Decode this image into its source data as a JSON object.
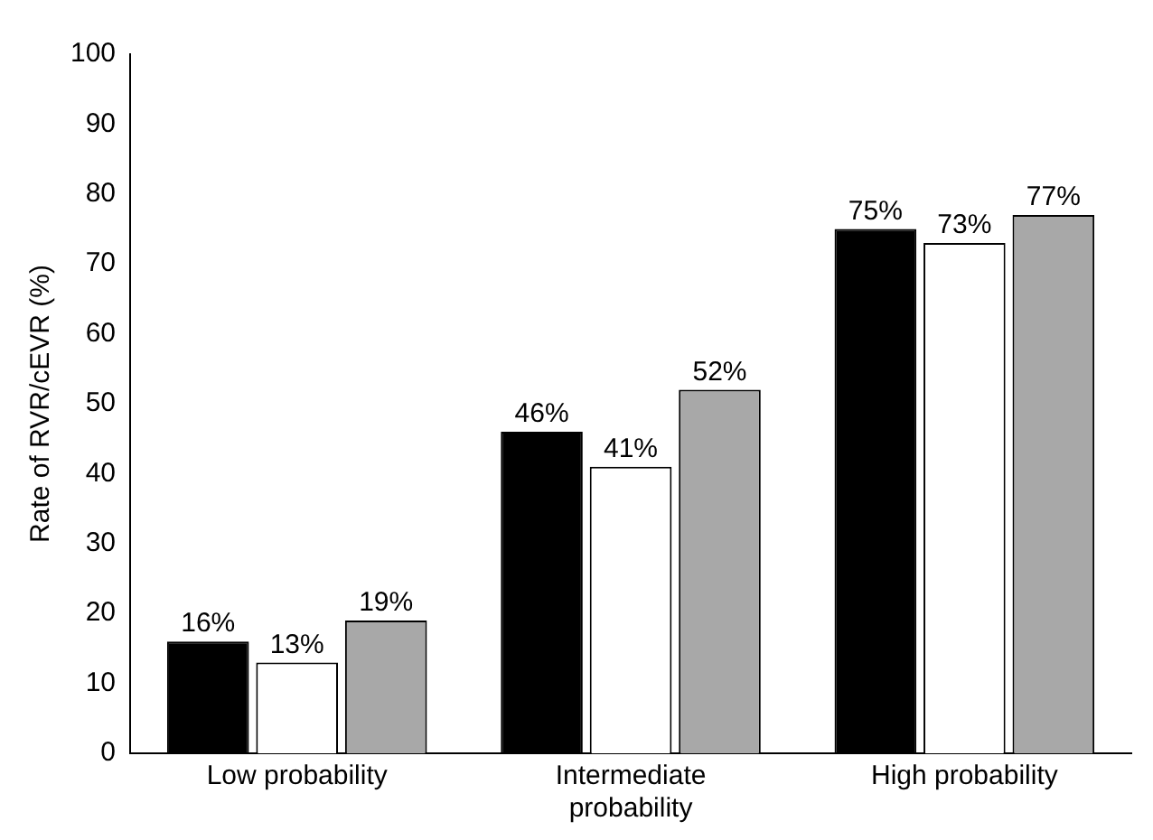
{
  "chart_data": {
    "type": "bar",
    "ylabel": "Rate of RVR/cEVR (%)",
    "categories": [
      "Low probability",
      "Intermediate probability",
      "High probability"
    ],
    "series": [
      {
        "color": "#000000",
        "values": [
          16,
          46,
          75
        ],
        "value_labels": [
          "16%",
          "46%",
          "75%"
        ]
      },
      {
        "color": "#ffffff",
        "values": [
          13,
          41,
          73
        ],
        "value_labels": [
          "13%",
          "41%",
          "73%"
        ]
      },
      {
        "color": "#a8a8a8",
        "values": [
          19,
          52,
          77
        ],
        "value_labels": [
          "19%",
          "52%",
          "77%"
        ]
      }
    ],
    "ylim": [
      0,
      100
    ],
    "yticks": [
      0,
      10,
      20,
      30,
      40,
      50,
      60,
      70,
      80,
      90,
      100
    ],
    "grid": false,
    "legend": false
  }
}
